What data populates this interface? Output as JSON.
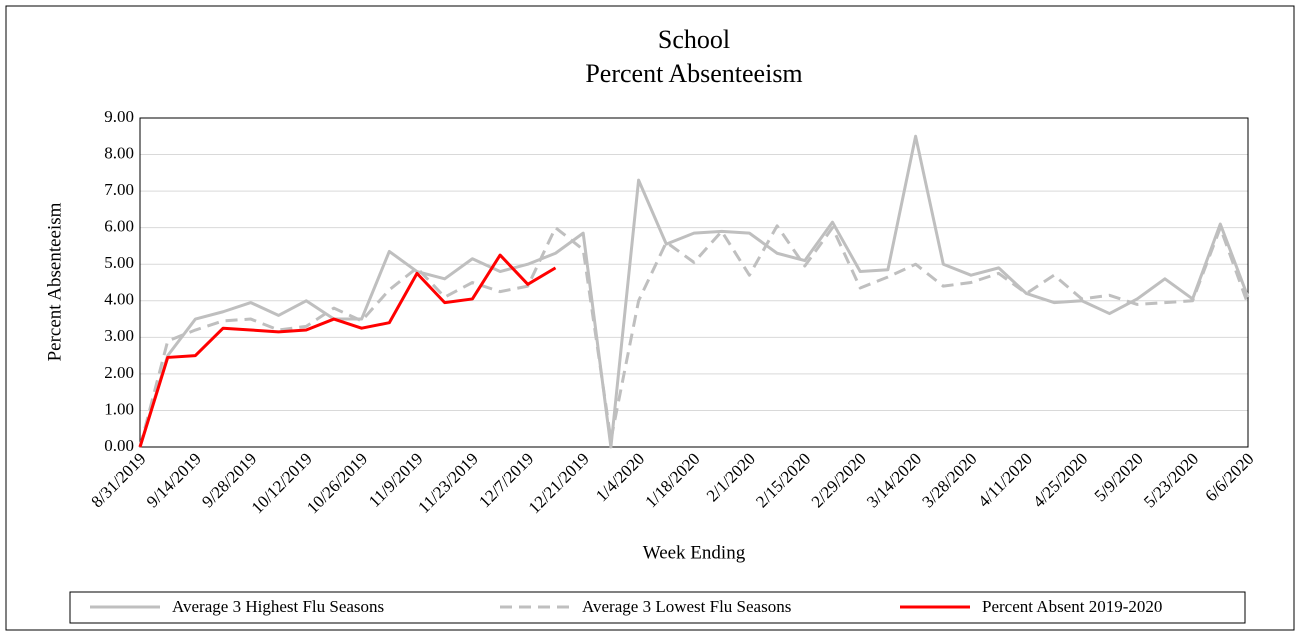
{
  "chart_data": {
    "type": "line",
    "title": "School",
    "subtitle": "Percent Absenteeism",
    "x_label": "Week Ending",
    "y_label": "Percent Absenteeism",
    "categories": [
      "8/31/2019",
      null,
      "9/14/2019",
      null,
      "9/28/2019",
      null,
      "10/12/2019",
      null,
      "10/26/2019",
      null,
      "11/9/2019",
      null,
      "11/23/2019",
      null,
      "12/7/2019",
      null,
      "12/21/2019",
      null,
      "1/4/2020",
      null,
      "1/18/2020",
      null,
      "2/1/2020",
      null,
      "2/15/2020",
      null,
      "2/29/2020",
      null,
      "3/14/2020",
      null,
      "3/28/2020",
      null,
      "4/11/2020",
      null,
      "4/25/2020",
      null,
      "5/9/2020",
      null,
      "5/23/2020",
      null,
      "6/6/2020"
    ],
    "series": [
      {
        "name": "Average 3 Highest Flu Seasons",
        "color": "#bfbfbf",
        "dash": false,
        "values": [
          0,
          2.5,
          3.5,
          3.7,
          3.95,
          3.6,
          4.0,
          3.5,
          3.5,
          5.35,
          4.8,
          4.6,
          5.15,
          4.8,
          5.0,
          5.3,
          5.85,
          0,
          7.3,
          5.55,
          5.85,
          5.9,
          5.85,
          5.3,
          5.1,
          6.15,
          4.8,
          4.85,
          8.5,
          5.0,
          4.7,
          4.9,
          4.2,
          3.95,
          4.0,
          3.65,
          4.05,
          4.6,
          4.05,
          6.1,
          4.1
        ]
      },
      {
        "name": "Average 3 Lowest Flu Seasons",
        "color": "#bfbfbf",
        "dash": true,
        "values": [
          0,
          2.9,
          3.2,
          3.45,
          3.5,
          3.2,
          3.3,
          3.8,
          3.45,
          4.3,
          4.9,
          4.1,
          4.5,
          4.25,
          4.4,
          6.0,
          5.4,
          0.2,
          4.0,
          5.6,
          5.05,
          5.9,
          4.7,
          6.05,
          4.95,
          6.0,
          4.35,
          4.65,
          5.0,
          4.4,
          4.5,
          4.75,
          4.2,
          4.7,
          4.05,
          4.15,
          3.9,
          3.95,
          4.0,
          6.0,
          3.9
        ]
      },
      {
        "name": "Percent Absent 2019-2020",
        "color": "#ff0000",
        "dash": false,
        "values": [
          0,
          2.45,
          2.5,
          3.25,
          3.2,
          3.15,
          3.2,
          3.5,
          3.25,
          3.4,
          4.75,
          3.95,
          4.05,
          5.25,
          4.45,
          4.9,
          null,
          null,
          null,
          null,
          null,
          null,
          null,
          null,
          null,
          null,
          null,
          null,
          null,
          null,
          null,
          null,
          null,
          null,
          null,
          null,
          null,
          null,
          null,
          null,
          null
        ]
      }
    ],
    "ylim": [
      0,
      9
    ],
    "yticks": [
      {
        "value": 0,
        "label": "0.00"
      },
      {
        "value": 1,
        "label": "1.00"
      },
      {
        "value": 2,
        "label": "2.00"
      },
      {
        "value": 3,
        "label": "3.00"
      },
      {
        "value": 4,
        "label": "4.00"
      },
      {
        "value": 5,
        "label": "5.00"
      },
      {
        "value": 6,
        "label": "6.00"
      },
      {
        "value": 7,
        "label": "7.00"
      },
      {
        "value": 8,
        "label": "8.00"
      },
      {
        "value": 9,
        "label": "9.00"
      }
    ],
    "grid": true,
    "legend": "bottom"
  }
}
